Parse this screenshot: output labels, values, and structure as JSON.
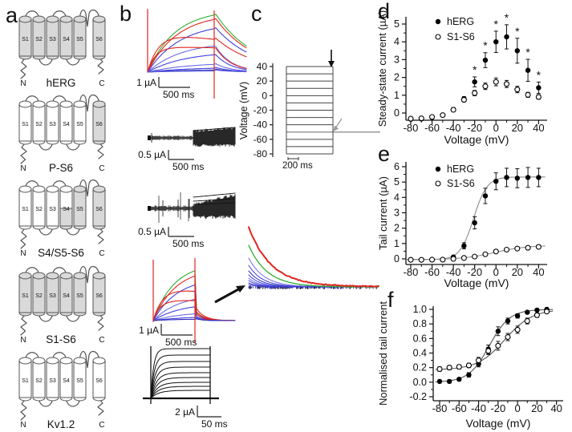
{
  "panels": {
    "a": "a",
    "b": "b",
    "c": "c",
    "d": "d",
    "e": "e",
    "f": "f"
  },
  "colors": {
    "membrane_fill": "#d9d9d9",
    "trace_red": "#e0251f",
    "trace_green": "#2fae2f",
    "trace_blue": "#4040dd",
    "trace_blue_light": "#6b6be8",
    "trace_blue_dark": "#2d2db8",
    "tail_line_gray": "#9a9a9a",
    "fit_gray": "#8c8c8c",
    "fit_dark": "#555555",
    "black": "#111111"
  },
  "panel_a": {
    "constructs": [
      {
        "name": "hERG",
        "n": "N",
        "c": "C",
        "segments": [
          "S1",
          "S2",
          "S3",
          "S4",
          "S5",
          "S6"
        ],
        "shaded": [
          true,
          true,
          true,
          true,
          true,
          true
        ]
      },
      {
        "name": "P-S6",
        "n": "N",
        "c": "C",
        "segments": [
          "S1",
          "S2",
          "S3",
          "S4",
          "S5",
          "S6"
        ],
        "shaded": [
          false,
          false,
          false,
          false,
          false,
          true
        ]
      },
      {
        "name": "S4/S5-S6",
        "n": "N",
        "c": "C",
        "segments": [
          "S1",
          "S2",
          "S3",
          "S4",
          "S5",
          "S6"
        ],
        "shaded": [
          false,
          false,
          false,
          "half",
          true,
          true
        ]
      },
      {
        "name": "S1-S6",
        "n": "N",
        "c": "C",
        "segments": [
          "S1",
          "S2",
          "S3",
          "S4",
          "S5",
          "S6"
        ],
        "shaded": [
          true,
          true,
          true,
          true,
          true,
          true
        ]
      },
      {
        "name": "Kv1.2",
        "n": "N",
        "c": "C",
        "segments": [
          "S1",
          "S2",
          "S3",
          "S4",
          "S5",
          "S6"
        ],
        "shaded": [
          false,
          false,
          false,
          false,
          false,
          false
        ]
      }
    ]
  },
  "panel_b": {
    "traces": [
      {
        "construct": "hERG",
        "style": "activation-family-color",
        "scale_amp": "1 µA",
        "scale_time": "500 ms"
      },
      {
        "construct": "P-S6",
        "style": "noisy-black",
        "scale_amp": "0.5 µA",
        "scale_time": "500 ms"
      },
      {
        "construct": "S4/S5-S6",
        "style": "noisy-black",
        "scale_amp": "0.5 µA",
        "scale_time": "500 ms"
      },
      {
        "construct": "S1-S6",
        "style": "activation-family-color-tail",
        "scale_amp": "1 µA",
        "scale_time": "500 ms"
      },
      {
        "construct": "Kv1.2",
        "style": "step-family-black",
        "scale_amp": "2 µA",
        "scale_time": "50 ms"
      }
    ]
  },
  "panel_c": {
    "ylabel": "Voltage (mV)",
    "yticks": [
      "40",
      "20",
      "0",
      "-20",
      "-40",
      "-60",
      "-80"
    ],
    "step_min": -80,
    "step_max": 40,
    "step_increment": 10,
    "tail_potential": -50,
    "scale_time": "200 ms"
  },
  "chart_data": [
    {
      "id": "d",
      "type": "scatter",
      "xlabel": "Voltage (mV)",
      "ylabel": "Steady-state current (µA)",
      "x": [
        -80,
        -70,
        -60,
        -50,
        -40,
        -30,
        -20,
        -10,
        0,
        10,
        20,
        30,
        40
      ],
      "xticks": [
        "-80",
        "-60",
        "-40",
        "-20",
        "0",
        "20",
        "40"
      ],
      "yticks": [
        "0",
        "1",
        "2",
        "3",
        "4",
        "5"
      ],
      "xlim": [
        -90,
        50
      ],
      "ylim": [
        -0.6,
        5.4
      ],
      "legend": [
        "hERG",
        "S1-S6"
      ],
      "legend_position": "top-left",
      "series": [
        {
          "name": "hERG",
          "marker": "filled-circle",
          "values": [
            -0.35,
            -0.33,
            -0.25,
            -0.12,
            0.2,
            0.8,
            1.75,
            2.97,
            4.0,
            4.28,
            3.5,
            2.4,
            1.42
          ],
          "errors": [
            0.08,
            0.08,
            0.08,
            0.08,
            0.1,
            0.12,
            0.28,
            0.42,
            0.6,
            0.68,
            0.7,
            0.62,
            0.32
          ]
        },
        {
          "name": "S1-S6",
          "marker": "open-circle",
          "values": [
            -0.32,
            -0.3,
            -0.22,
            -0.12,
            0.18,
            0.74,
            1.12,
            1.5,
            1.75,
            1.63,
            1.32,
            1.02,
            0.9
          ],
          "errors": [
            0.06,
            0.06,
            0.06,
            0.06,
            0.08,
            0.1,
            0.15,
            0.18,
            0.22,
            0.2,
            0.18,
            0.14,
            0.12
          ]
        }
      ],
      "significance": {
        "symbol": "*",
        "series": "hERG",
        "x": [
          -20,
          -10,
          0,
          10,
          20,
          30,
          40
        ]
      }
    },
    {
      "id": "e",
      "type": "scatter",
      "xlabel": "Voltage (mV)",
      "ylabel": "Tail current (µA)",
      "x": [
        -80,
        -70,
        -60,
        -50,
        -40,
        -30,
        -20,
        -10,
        0,
        10,
        20,
        30,
        40
      ],
      "xticks": [
        "-80",
        "-60",
        "-40",
        "-20",
        "0",
        "20",
        "40"
      ],
      "yticks": [
        "0",
        "1",
        "2",
        "3",
        "4",
        "5",
        "6"
      ],
      "xlim": [
        -90,
        50
      ],
      "ylim": [
        -0.4,
        6.3
      ],
      "legend": [
        "hERG",
        "S1-S6"
      ],
      "legend_position": "top-left",
      "series": [
        {
          "name": "hERG",
          "marker": "filled-circle",
          "values": [
            -0.05,
            -0.07,
            -0.06,
            -0.05,
            0.12,
            0.85,
            2.35,
            4.1,
            5.05,
            5.3,
            5.25,
            5.3,
            5.3
          ],
          "errors": [
            0.05,
            0.05,
            0.05,
            0.05,
            0.08,
            0.2,
            0.4,
            0.5,
            0.55,
            0.6,
            0.62,
            0.65,
            0.6
          ],
          "fit": {
            "base": -0.05,
            "amp": 5.38,
            "vhalf": -21,
            "slope": 6.3
          }
        },
        {
          "name": "S1-S6",
          "marker": "open-circle",
          "values": [
            -0.06,
            -0.06,
            -0.05,
            -0.05,
            0.0,
            0.06,
            0.15,
            0.3,
            0.48,
            0.6,
            0.67,
            0.72,
            0.78
          ],
          "errors": [
            0.04,
            0.04,
            0.04,
            0.04,
            0.04,
            0.05,
            0.05,
            0.06,
            0.07,
            0.07,
            0.07,
            0.07,
            0.08
          ],
          "fit": {
            "base": -0.04,
            "amp": 0.92,
            "vhalf": -1,
            "slope": 15
          }
        }
      ]
    },
    {
      "id": "f",
      "type": "scatter",
      "xlabel": "Voltage (mV)",
      "ylabel": "Normalised tail current",
      "x": [
        -80,
        -70,
        -60,
        -50,
        -40,
        -30,
        -20,
        -10,
        0,
        10,
        20,
        30
      ],
      "xticks": [
        "-80",
        "-60",
        "-40",
        "-20",
        "0",
        "20",
        "40"
      ],
      "yticks": [
        "1.0",
        "0.8",
        "0.6",
        "0.4",
        "0.2",
        "0.0",
        "-0.2"
      ],
      "xlim": [
        -90,
        50
      ],
      "ylim": [
        -0.27,
        1.08
      ],
      "legend": null,
      "series": [
        {
          "name": "hERG",
          "marker": "filled-circle",
          "values": [
            0.01,
            0.01,
            0.04,
            0.1,
            0.25,
            0.45,
            0.7,
            0.84,
            0.91,
            0.96,
            0.99,
            1.0
          ],
          "errors": [
            0.02,
            0.02,
            0.02,
            0.03,
            0.04,
            0.06,
            0.06,
            0.04,
            0.03,
            0.02,
            0.02,
            0.02
          ],
          "fit": {
            "base": 0.0,
            "amp": 1.0,
            "vhalf": -29,
            "slope": 10.5
          }
        },
        {
          "name": "S1-S6",
          "marker": "open-circle",
          "values": [
            0.18,
            0.2,
            0.21,
            0.23,
            0.3,
            0.43,
            0.5,
            0.62,
            0.72,
            0.84,
            0.92,
            0.97
          ],
          "errors": [
            0.03,
            0.03,
            0.03,
            0.03,
            0.04,
            0.05,
            0.06,
            0.05,
            0.05,
            0.04,
            0.03,
            0.02
          ],
          "fit": {
            "base": 0.17,
            "amp": 0.83,
            "vhalf": -13,
            "slope": 14
          }
        }
      ]
    }
  ]
}
